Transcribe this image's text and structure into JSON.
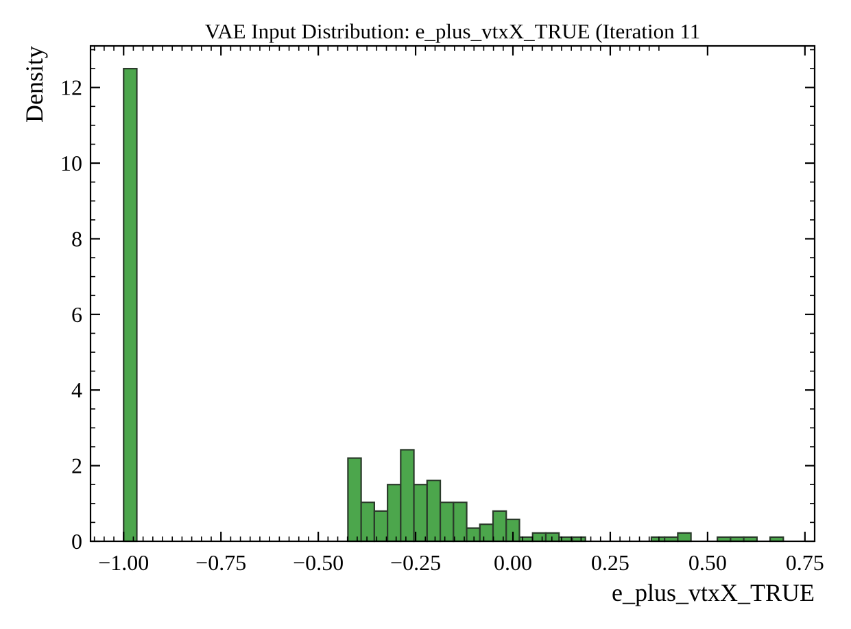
{
  "chart_data": {
    "type": "bar",
    "title": "VAE Input Distribution: e_plus_vtxX_TRUE (Iteration 11",
    "xlabel": "e_plus_vtxX_TRUE",
    "ylabel": "Density",
    "xlim": [
      -1.085,
      0.775
    ],
    "ylim": [
      0,
      13.1
    ],
    "xticks": [
      -1.0,
      -0.75,
      -0.5,
      -0.25,
      0.0,
      0.25,
      0.5,
      0.75
    ],
    "xtick_labels": [
      "−1.00",
      "−0.75",
      "−0.50",
      "−0.25",
      "0.00",
      "0.25",
      "0.50",
      "0.75"
    ],
    "yticks": [
      0,
      2,
      4,
      6,
      8,
      10,
      12
    ],
    "ytick_labels": [
      "0",
      "2",
      "4",
      "6",
      "8",
      "10",
      "12"
    ],
    "bin_width": 0.0339,
    "bars": [
      {
        "x0": -1.0,
        "value": 12.5
      },
      {
        "x0": -0.4238,
        "value": 2.2
      },
      {
        "x0": -0.3899,
        "value": 1.03
      },
      {
        "x0": -0.356,
        "value": 0.8
      },
      {
        "x0": -0.3221,
        "value": 1.5
      },
      {
        "x0": -0.2883,
        "value": 2.42
      },
      {
        "x0": -0.2544,
        "value": 1.5
      },
      {
        "x0": -0.2205,
        "value": 1.61
      },
      {
        "x0": -0.1866,
        "value": 1.03
      },
      {
        "x0": -0.1527,
        "value": 1.03
      },
      {
        "x0": -0.1188,
        "value": 0.35
      },
      {
        "x0": -0.0849,
        "value": 0.45
      },
      {
        "x0": -0.0511,
        "value": 0.8
      },
      {
        "x0": -0.0172,
        "value": 0.58
      },
      {
        "x0": 0.0167,
        "value": 0.11
      },
      {
        "x0": 0.0506,
        "value": 0.22
      },
      {
        "x0": 0.0845,
        "value": 0.22
      },
      {
        "x0": 0.1184,
        "value": 0.11
      },
      {
        "x0": 0.1523,
        "value": 0.11
      },
      {
        "x0": 0.3556,
        "value": 0.11
      },
      {
        "x0": 0.3895,
        "value": 0.11
      },
      {
        "x0": 0.4234,
        "value": 0.22
      },
      {
        "x0": 0.5251,
        "value": 0.11
      },
      {
        "x0": 0.559,
        "value": 0.11
      },
      {
        "x0": 0.5929,
        "value": 0.11
      },
      {
        "x0": 0.6606,
        "value": 0.11
      }
    ],
    "bar_color": "#4ca64c",
    "edge_color": "#2a3a2a",
    "grid": false,
    "legend": "none"
  }
}
